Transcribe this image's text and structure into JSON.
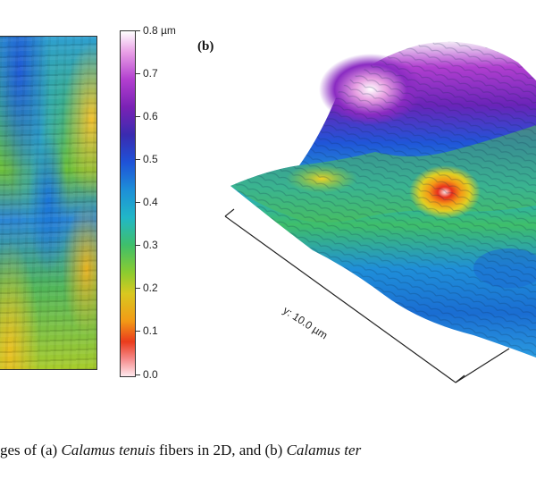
{
  "figure": {
    "panel_b_label": "(b)",
    "colorbar": {
      "unit_label": "0.8 µm",
      "ticks": [
        "0.7",
        "0.6",
        "0.5",
        "0.4",
        "0.3",
        "0.2",
        "0.1",
        "0.0"
      ],
      "colors": [
        "#ffffff",
        "#b23fcf",
        "#1e52d8",
        "#21b7c7",
        "#3fbf6a",
        "#d8c820",
        "#f29a16",
        "#ea3b1c",
        "#ffe9ee"
      ]
    },
    "axis_y_label": "y: 10.0 µm"
  },
  "caption": {
    "part1": "ges of (a) ",
    "species1": "Calamus tenuis",
    "part2": " fibers in 2D, and (b) ",
    "species2": "Calamus ter"
  }
}
